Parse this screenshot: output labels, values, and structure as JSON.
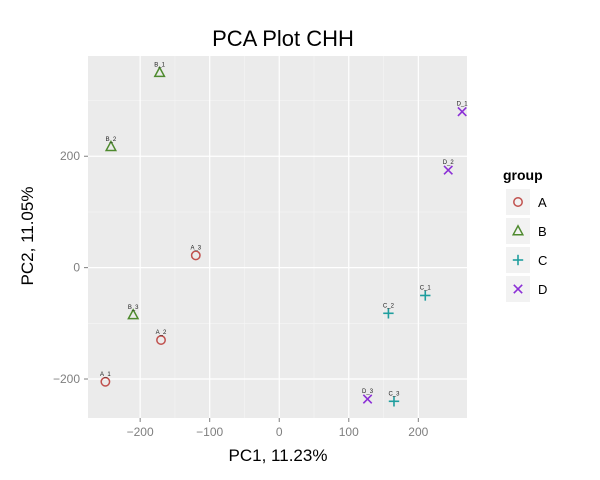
{
  "chart_data": {
    "type": "scatter",
    "title": "PCA Plot CHH",
    "xlabel": "PC1, 11.23%",
    "ylabel": "PC2, 11.05%",
    "xlim": [
      -275,
      270
    ],
    "ylim": [
      -270,
      380
    ],
    "xticks": [
      -200,
      -100,
      0,
      100,
      200
    ],
    "yticks": [
      -200,
      0,
      200
    ],
    "xtick_labels": [
      "−200",
      "−100",
      "0",
      "100",
      "200"
    ],
    "ytick_labels": [
      "−200",
      "0",
      "200"
    ],
    "grid": true,
    "legend": {
      "title": "group",
      "position": "right"
    },
    "series": [
      {
        "name": "A",
        "marker": "circle",
        "color": "#c0504d",
        "points": [
          {
            "x": -250,
            "y": -205,
            "label": "A_1"
          },
          {
            "x": -170,
            "y": -130,
            "label": "A_2"
          },
          {
            "x": -120,
            "y": 22,
            "label": "A_3"
          }
        ]
      },
      {
        "name": "B",
        "marker": "triangle",
        "color": "#4e8a2e",
        "points": [
          {
            "x": -172,
            "y": 350,
            "label": "B_1"
          },
          {
            "x": -242,
            "y": 217,
            "label": "B_2"
          },
          {
            "x": -210,
            "y": -85,
            "label": "B_3"
          }
        ]
      },
      {
        "name": "C",
        "marker": "plus",
        "color": "#1f9e9e",
        "points": [
          {
            "x": 210,
            "y": -50,
            "label": "C_1"
          },
          {
            "x": 157,
            "y": -82,
            "label": "C_2"
          },
          {
            "x": 165,
            "y": -240,
            "label": "C_3"
          }
        ]
      },
      {
        "name": "D",
        "marker": "cross",
        "color": "#8b2fd6",
        "points": [
          {
            "x": 263,
            "y": 280,
            "label": "D_1"
          },
          {
            "x": 243,
            "y": 175,
            "label": "D_2"
          },
          {
            "x": 127,
            "y": -236,
            "label": "D_3"
          }
        ]
      }
    ]
  }
}
